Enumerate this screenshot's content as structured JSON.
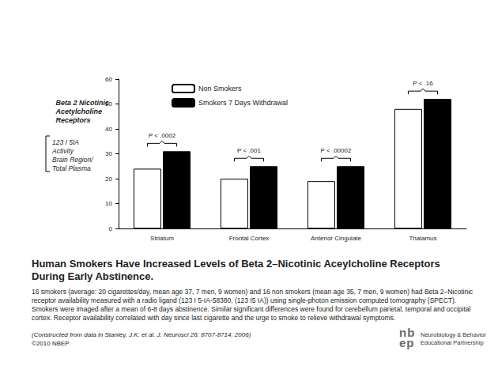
{
  "chart_data": {
    "type": "bar",
    "title": "Human Smokers Have Increased Levels of Beta 2–Nicotinic Aceylcholine Receptors During Early Abstinence.",
    "y_label": [
      "Beta 2 Nicotinic",
      "Acetylcholine",
      "Receptors"
    ],
    "y_sublabel": [
      "123 I 5IA",
      "Activity",
      "Brain Region/",
      "Total Plasma"
    ],
    "categories": [
      "Striatum",
      "Frontal Cortex",
      "Anterior Cingulate",
      "Thalamus"
    ],
    "series": [
      {
        "name": "Non Smokers",
        "color": "#ffffff",
        "values": [
          24,
          20,
          19,
          48
        ]
      },
      {
        "name": "Smokers 7 Days Withdrawal",
        "color": "#000000",
        "values": [
          31,
          25,
          25,
          52
        ]
      }
    ],
    "ylim": [
      0,
      60
    ],
    "yticks": [
      0,
      10,
      20,
      30,
      40,
      50,
      60
    ],
    "grid": false,
    "legend": "upper left",
    "annotations": [
      {
        "category": "Striatum",
        "text": "P < .0002"
      },
      {
        "category": "Frontal Cortex",
        "text": "P < .001"
      },
      {
        "category": "Anterior Cingulate",
        "text": "P < .00002"
      },
      {
        "category": "Thalamus",
        "text": "P < .16"
      }
    ],
    "caption": "16 smokers (average: 20 cigarettes/day, mean age 37, 7 men, 9 women) and 16 non smokers (mean age 35, 7 men, 9 women) had Beta 2–Nicotinic receptor availability measured with a radio ligand (123 I 5-IA-58380, (123 I5 IA)) using single-photon emission computed tomography (SPECT). Smokers were imaged after a mean of 6-8 days abstinence. Similar significant differences were found for cerebellum parietal, temporal and occipital cortex. Receptor availability correlated with day since last cigarette and the urge to smoke to relieve withdrawal symptoms.",
    "source": "(Constructed from data in Stanley, J.K. et al. J. Neurosci 26: 8707-8714, 2006)",
    "copyright": "©2010 NBEP",
    "logo": [
      "nb",
      "ep"
    ],
    "logo_text": [
      "Neurobiology & Behavior",
      "Educational Partnership"
    ]
  }
}
